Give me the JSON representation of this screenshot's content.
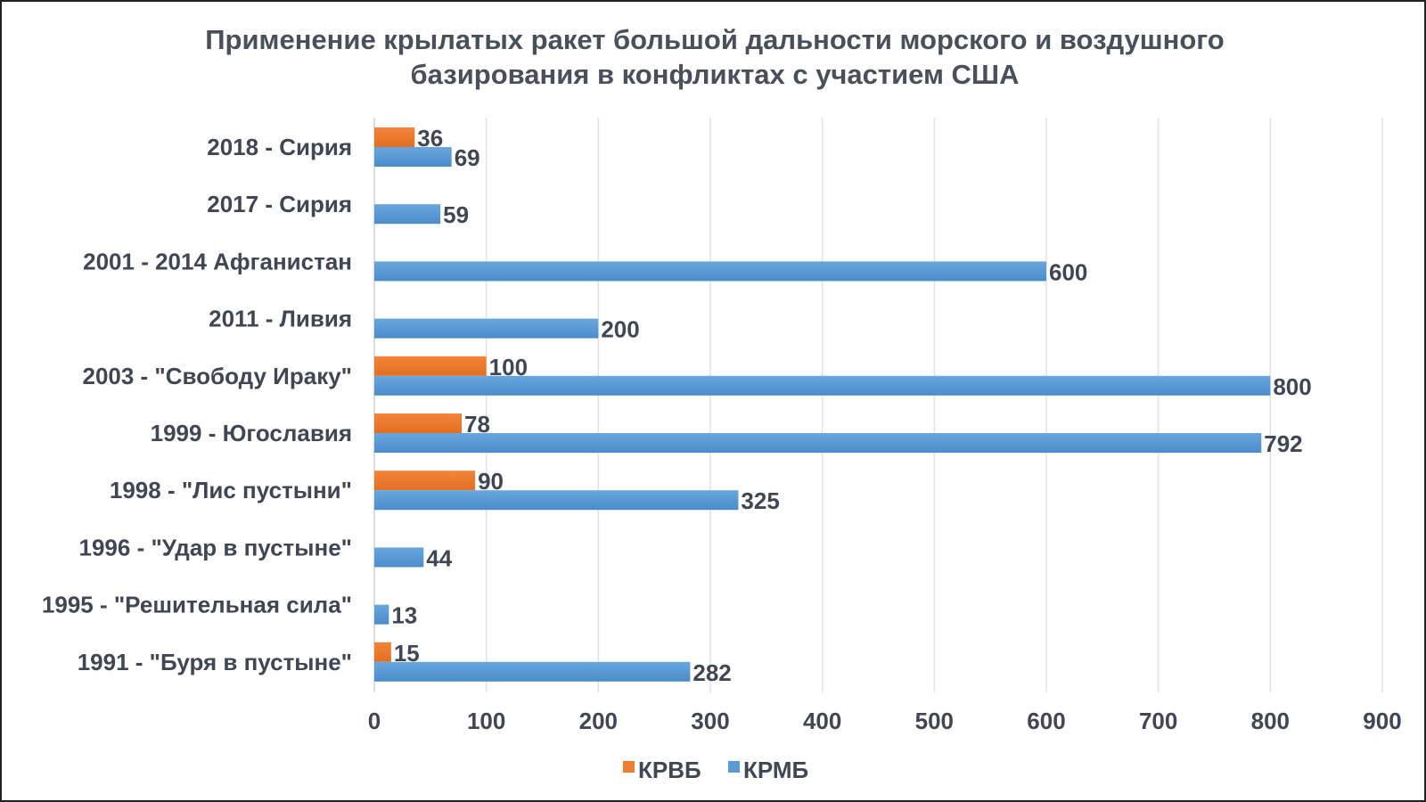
{
  "chart_data": {
    "type": "bar",
    "orientation": "horizontal",
    "title_lines": [
      "Применение крылатых ракет большой дальности морского и воздушного",
      "базирования в конфликтах с участием США"
    ],
    "categories": [
      "2018 - Сирия",
      "2017 - Сирия",
      "2001 - 2014 Афганистан",
      "2011 - Ливия",
      "2003 - \"Свободу Ираку\"",
      "1999 - Югославия",
      "1998 - \"Лис пустыни\"",
      "1996 - \"Удар в пустыне\"",
      "1995 - \"Решительная сила\"",
      "1991 - \"Буря в пустыне\""
    ],
    "series": [
      {
        "name": "КРВБ",
        "color": "#ED7D31",
        "values": [
          36,
          null,
          null,
          null,
          100,
          78,
          90,
          null,
          null,
          15
        ]
      },
      {
        "name": "КРМБ",
        "color": "#5B9BD5",
        "values": [
          69,
          59,
          600,
          200,
          800,
          792,
          325,
          44,
          13,
          282
        ]
      }
    ],
    "xlim": [
      0,
      900
    ],
    "xticks": [
      "0",
      "100",
      "200",
      "300",
      "400",
      "500",
      "600",
      "700",
      "800",
      "900"
    ],
    "xlabel": "",
    "ylabel": "",
    "grid": true,
    "legend_position": "bottom"
  }
}
